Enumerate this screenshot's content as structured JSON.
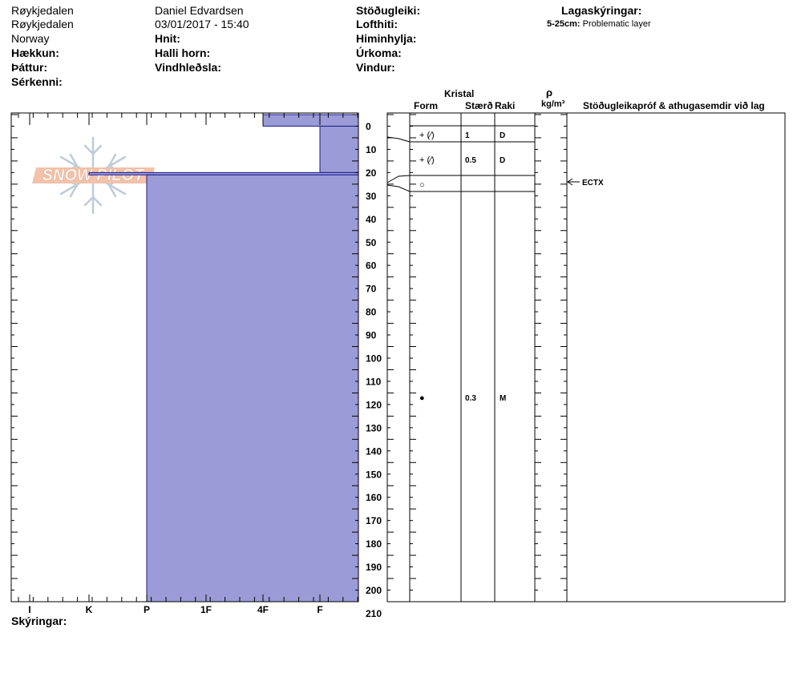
{
  "header": {
    "left": [
      "Røykjedalen",
      "Røykjedalen",
      "Norway"
    ],
    "left_labels": [
      "Hækkun:",
      "Þáttur:",
      "Sérkenni:"
    ],
    "observer": "Daniel Edvardsen",
    "datetime": "03/01/2017 - 15:40",
    "mid_labels": [
      "Hnit:",
      "Halli horn:",
      "Vindhleðsla:"
    ],
    "right_labels": [
      "Stöðugleiki:",
      "Lofthiti:",
      "Himinhylja:",
      "Úrkoma:",
      "Vindur:"
    ],
    "layer_notes_title": "Lagaskýringar:",
    "layer_note_depth": "5-25cm:",
    "layer_note_text": "Problematic layer"
  },
  "logo": {
    "text": "SNOW PILOT"
  },
  "footer": {
    "label": "Skýringar:"
  },
  "table": {
    "crystal_header": "Kristal",
    "form_header": "Form",
    "size_header": "Stærð",
    "moisture_header": "Raki",
    "rho_symbol": "ρ",
    "density_header": "kg/m³",
    "stability_header": "Stöðugleikapróf & athugasemdir við lag",
    "rows": [
      {
        "form": "+ (⁄)",
        "size": "1",
        "moisture": "D"
      },
      {
        "form": "+ (⁄)",
        "size": "0.5",
        "moisture": "D"
      },
      {
        "form": "○",
        "size": "",
        "moisture": ""
      },
      {
        "form": "●",
        "size": "0.3",
        "moisture": "M"
      }
    ],
    "test_label": "ECTX"
  },
  "chart_data": {
    "type": "bar",
    "hardness_scale": [
      "I",
      "K",
      "P",
      "1F",
      "4F",
      "F"
    ],
    "depth_ticks": [
      0,
      10,
      20,
      30,
      40,
      50,
      60,
      70,
      80,
      90,
      100,
      110,
      120,
      130,
      140,
      150,
      160,
      170,
      180,
      190,
      200,
      210
    ],
    "depth_range": [
      0,
      210
    ],
    "depth_unit": "cm",
    "layers": [
      {
        "top": 0,
        "bottom": 5,
        "hardness": 4
      },
      {
        "top": 5,
        "bottom": 25,
        "hardness": 5
      },
      {
        "top": 25,
        "bottom": 26,
        "hardness": 1
      },
      {
        "top": 26,
        "bottom": 210,
        "hardness": 2
      }
    ],
    "color": "#9b9bd7"
  }
}
